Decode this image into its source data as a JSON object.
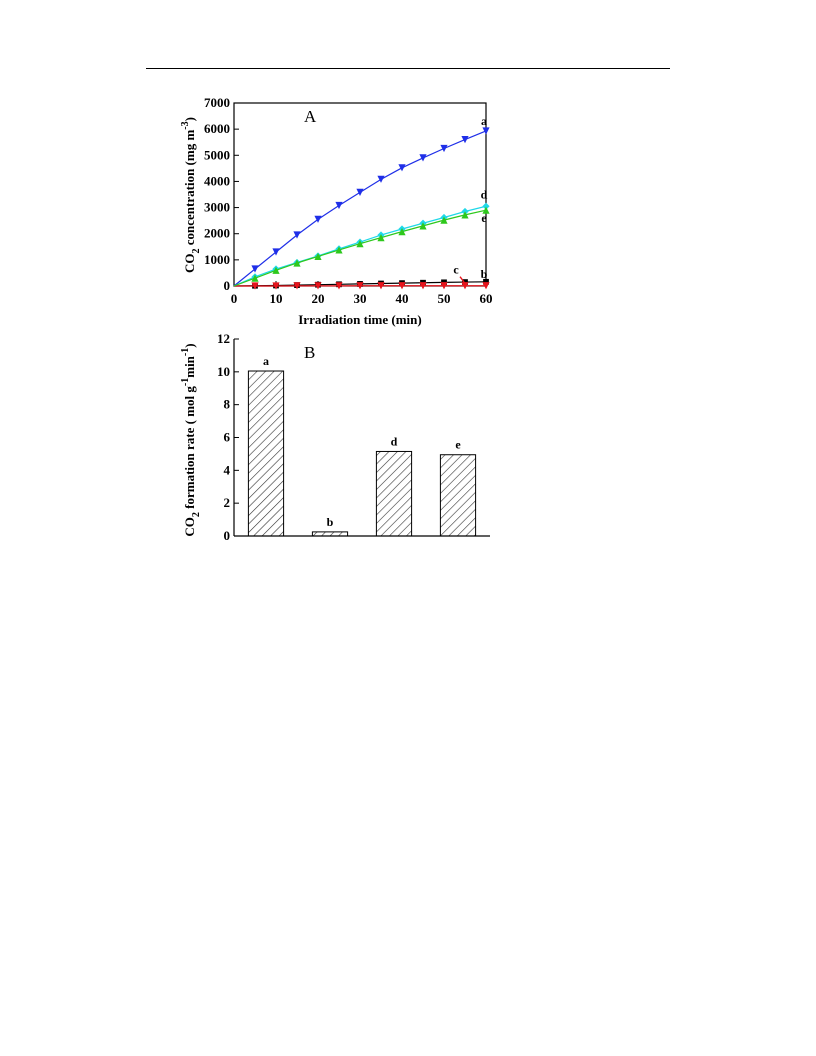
{
  "chart_data": [
    {
      "type": "line",
      "panel_label": "A",
      "xlabel": "Irradiation time (min)",
      "ylabel_main": "CO",
      "ylabel_sub": "2",
      "ylabel_rest": " concentration (mg m",
      "ylabel_sup": "-3",
      "ylabel_end": ")",
      "xlim": [
        0,
        60
      ],
      "ylim": [
        0,
        7000
      ],
      "xticks": [
        "0",
        "10",
        "20",
        "30",
        "40",
        "50",
        "60"
      ],
      "yticks": [
        "0",
        "1000",
        "2000",
        "3000",
        "4000",
        "5000",
        "6000",
        "7000"
      ],
      "grid": false,
      "series": [
        {
          "name": "a",
          "color": "#1f2fe8",
          "marker": "triangle-down",
          "x": [
            0,
            5,
            10,
            15,
            20,
            25,
            30,
            35,
            40,
            45,
            50,
            55,
            60
          ],
          "y": [
            0,
            650,
            1300,
            1950,
            2550,
            3080,
            3580,
            4080,
            4520,
            4900,
            5260,
            5600,
            5930
          ]
        },
        {
          "name": "b",
          "color": "#000000",
          "marker": "square",
          "x": [
            0,
            5,
            10,
            15,
            20,
            25,
            30,
            35,
            40,
            45,
            50,
            55,
            60
          ],
          "y": [
            0,
            10,
            20,
            35,
            50,
            65,
            80,
            95,
            110,
            125,
            140,
            150,
            160
          ]
        },
        {
          "name": "c",
          "color": "#e8141c",
          "marker": "triangle-down",
          "x": [
            0,
            5,
            10,
            15,
            20,
            25,
            30,
            35,
            40,
            45,
            50,
            55,
            60
          ],
          "y": [
            0,
            0,
            0,
            5,
            5,
            5,
            10,
            10,
            10,
            10,
            10,
            10,
            10
          ]
        },
        {
          "name": "d",
          "color": "#1fd8e8",
          "marker": "diamond",
          "x": [
            0,
            5,
            10,
            15,
            20,
            25,
            30,
            35,
            40,
            45,
            50,
            55,
            60
          ],
          "y": [
            0,
            350,
            650,
            900,
            1150,
            1420,
            1680,
            1950,
            2180,
            2400,
            2620,
            2850,
            3050
          ]
        },
        {
          "name": "e",
          "color": "#2ec81c",
          "marker": "triangle-up",
          "x": [
            0,
            5,
            10,
            15,
            20,
            25,
            30,
            35,
            40,
            45,
            50,
            55,
            60
          ],
          "y": [
            0,
            300,
            600,
            880,
            1130,
            1380,
            1620,
            1850,
            2080,
            2300,
            2520,
            2720,
            2900
          ]
        }
      ]
    },
    {
      "type": "bar",
      "panel_label": "B",
      "ylabel_main": "CO",
      "ylabel_sub": "2",
      "ylabel_rest": " formation rate (  mol g",
      "ylabel_sup": "-1",
      "ylabel_mid": "min",
      "ylabel_sup2": "-1",
      "ylabel_end": ")",
      "ylim": [
        0,
        12
      ],
      "yticks": [
        "0",
        "2",
        "4",
        "6",
        "8",
        "10",
        "12"
      ],
      "categories": [
        "a",
        "b",
        "d",
        "e"
      ],
      "values": [
        10.05,
        0.25,
        5.15,
        4.95
      ],
      "hatch": "diagonal",
      "grid": false
    }
  ]
}
